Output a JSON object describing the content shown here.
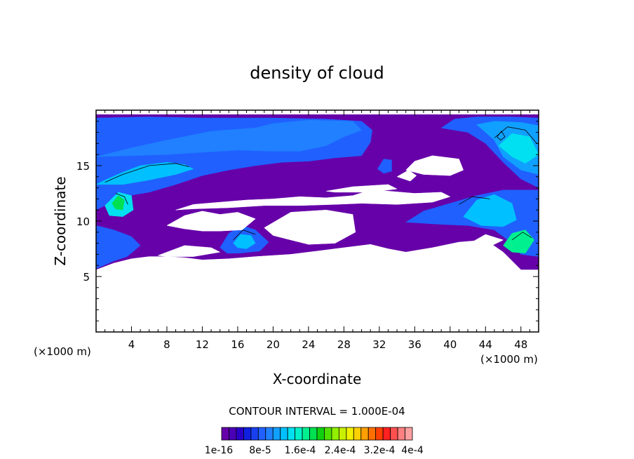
{
  "chart_data": {
    "type": "heatmap",
    "title": "density of cloud",
    "xlabel": "X-coordinate",
    "ylabel": "Z-coordinate",
    "x_unit_left": "(×1000 m)",
    "x_unit_right": "(×1000 m)",
    "xlim": [
      0,
      50
    ],
    "ylim": [
      0,
      20
    ],
    "xticks": [
      4,
      8,
      12,
      16,
      20,
      24,
      28,
      32,
      36,
      40,
      44,
      48
    ],
    "yticks": [
      5,
      10,
      15
    ],
    "grid": false,
    "contour_interval_text": "CONTOUR INTERVAL = 1.000E-04",
    "colorbar": {
      "labels": [
        "1e-16",
        "8e-5",
        "1.6e-4",
        "2.4e-4",
        "3.2e-4",
        "4e-4"
      ],
      "colors": [
        "#6600a8",
        "#4a00b4",
        "#2a00c8",
        "#1020e0",
        "#1840f0",
        "#2060ff",
        "#2080ff",
        "#10a0ff",
        "#00c0ff",
        "#00e0f0",
        "#00f0c8",
        "#00f090",
        "#00e050",
        "#10d010",
        "#50e000",
        "#90f000",
        "#c8f000",
        "#f0f000",
        "#ffd000",
        "#ffa000",
        "#ff7000",
        "#ff4000",
        "#ff2020",
        "#ff5050",
        "#ff8080",
        "#ffa0a0"
      ]
    },
    "regions": [
      {
        "level": 0,
        "points": [
          [
            0,
            5.6
          ],
          [
            2,
            6.2
          ],
          [
            4,
            6.6
          ],
          [
            6,
            6.8
          ],
          [
            8,
            6.8
          ],
          [
            10,
            6.7
          ],
          [
            12,
            6.5
          ],
          [
            15,
            6.6
          ],
          [
            18,
            6.8
          ],
          [
            22,
            7.0
          ],
          [
            25,
            7.3
          ],
          [
            28,
            7.6
          ],
          [
            31,
            7.9
          ],
          [
            33,
            7.5
          ],
          [
            35,
            7.2
          ],
          [
            38,
            7.6
          ],
          [
            41,
            8.1
          ],
          [
            44,
            8.3
          ],
          [
            46,
            7.2
          ],
          [
            48,
            5.6
          ],
          [
            50,
            5.6
          ],
          [
            50,
            19.6
          ],
          [
            0,
            19.6
          ]
        ]
      },
      {
        "level": 5,
        "points": [
          [
            0,
            11.0
          ],
          [
            3,
            12.2
          ],
          [
            6,
            12.6
          ],
          [
            9,
            13.3
          ],
          [
            12,
            14.1
          ],
          [
            15,
            14.6
          ],
          [
            18,
            15.0
          ],
          [
            21,
            15.3
          ],
          [
            24,
            15.4
          ],
          [
            27,
            15.7
          ],
          [
            30,
            15.9
          ],
          [
            31,
            17.1
          ],
          [
            31.2,
            18.2
          ],
          [
            30,
            19.0
          ],
          [
            26,
            19.2
          ],
          [
            20,
            19.3
          ],
          [
            12,
            19.3
          ],
          [
            6,
            19.4
          ],
          [
            0,
            19.3
          ]
        ]
      },
      {
        "level": 6,
        "points": [
          [
            0,
            15.8
          ],
          [
            4,
            16.6
          ],
          [
            8,
            17.3
          ],
          [
            13,
            18.1
          ],
          [
            18,
            18.4
          ],
          [
            20,
            18.8
          ],
          [
            24,
            19.1
          ],
          [
            29,
            19.0
          ],
          [
            30,
            18.2
          ],
          [
            28,
            17.6
          ],
          [
            26,
            16.8
          ],
          [
            23,
            16.3
          ],
          [
            20,
            16.3
          ],
          [
            16,
            16.4
          ],
          [
            12,
            16.2
          ],
          [
            8,
            16.0
          ],
          [
            4,
            15.9
          ]
        ]
      },
      {
        "level": 8,
        "points": [
          [
            0,
            13.3
          ],
          [
            1,
            13.7
          ],
          [
            3,
            14.4
          ],
          [
            5,
            15.0
          ],
          [
            8,
            15.3
          ],
          [
            10,
            15.1
          ],
          [
            11,
            14.7
          ],
          [
            9,
            14.2
          ],
          [
            6,
            13.7
          ],
          [
            3,
            13.3
          ]
        ]
      },
      {
        "level": 9,
        "points": [
          [
            1,
            11.4
          ],
          [
            2.5,
            12.6
          ],
          [
            4,
            12.3
          ],
          [
            4.2,
            11.0
          ],
          [
            3,
            10.4
          ],
          [
            1.5,
            10.5
          ]
        ]
      },
      {
        "level": 12,
        "points": [
          [
            1.8,
            11.6
          ],
          [
            2.5,
            12.3
          ],
          [
            3.2,
            11.9
          ],
          [
            3.0,
            11.0
          ],
          [
            2.2,
            11.1
          ]
        ]
      },
      {
        "level": 5,
        "points": [
          [
            39,
            18.4
          ],
          [
            40.5,
            19.2
          ],
          [
            43,
            19.4
          ],
          [
            47,
            19.4
          ],
          [
            50,
            19.3
          ],
          [
            50,
            13.0
          ],
          [
            48,
            13.8
          ],
          [
            46,
            15.3
          ],
          [
            44,
            17.0
          ],
          [
            42,
            18.0
          ]
        ]
      },
      {
        "level": 7,
        "points": [
          [
            43,
            18.7
          ],
          [
            45,
            19.0
          ],
          [
            48,
            18.9
          ],
          [
            50,
            18.6
          ],
          [
            50,
            14.2
          ],
          [
            48,
            14.6
          ],
          [
            46,
            15.8
          ],
          [
            45,
            17.3
          ]
        ]
      },
      {
        "level": 9,
        "points": [
          [
            45.5,
            16.8
          ],
          [
            47,
            17.9
          ],
          [
            49,
            17.6
          ],
          [
            50,
            16.0
          ],
          [
            48.5,
            15.2
          ],
          [
            47,
            15.8
          ]
        ]
      },
      {
        "level": 5,
        "points": [
          [
            0,
            5.7
          ],
          [
            2,
            6.4
          ],
          [
            3.5,
            6.8
          ],
          [
            5,
            7.8
          ],
          [
            4,
            8.6
          ],
          [
            2,
            9.2
          ],
          [
            0,
            9.6
          ]
        ]
      },
      {
        "level": 5,
        "points": [
          [
            35,
            9.9
          ],
          [
            37,
            10.9
          ],
          [
            40,
            11.6
          ],
          [
            43,
            12.3
          ],
          [
            46,
            12.8
          ],
          [
            50,
            12.8
          ],
          [
            50,
            6.8
          ],
          [
            48,
            7.0
          ],
          [
            47,
            8.0
          ],
          [
            45,
            9.2
          ],
          [
            42,
            9.6
          ],
          [
            39,
            9.7
          ]
        ]
      },
      {
        "level": 8,
        "points": [
          [
            41.5,
            10.4
          ],
          [
            43,
            11.9
          ],
          [
            45,
            12.4
          ],
          [
            47,
            11.6
          ],
          [
            47.5,
            10.1
          ],
          [
            46,
            9.5
          ],
          [
            43.5,
            9.6
          ]
        ]
      },
      {
        "level": 11,
        "points": [
          [
            46,
            7.8
          ],
          [
            47,
            8.9
          ],
          [
            48.5,
            9.2
          ],
          [
            49.5,
            8.3
          ],
          [
            48.5,
            7.1
          ],
          [
            47,
            7.2
          ]
        ]
      },
      {
        "level": 5,
        "points": [
          [
            14.0,
            7.6
          ],
          [
            15.0,
            8.9
          ],
          [
            16.5,
            9.6
          ],
          [
            18.0,
            9.2
          ],
          [
            19.5,
            8.1
          ],
          [
            18.5,
            7.3
          ],
          [
            16.2,
            7.1
          ],
          [
            14.8,
            7.1
          ]
        ]
      },
      {
        "level": 8,
        "points": [
          [
            15.5,
            8.0
          ],
          [
            16.3,
            8.8
          ],
          [
            17.5,
            8.7
          ],
          [
            18.0,
            8.0
          ],
          [
            17.0,
            7.5
          ],
          [
            16.0,
            7.6
          ]
        ]
      },
      {
        "level": 5,
        "points": [
          [
            31.8,
            14.7
          ],
          [
            32.5,
            15.6
          ],
          [
            33.4,
            15.5
          ],
          [
            33.4,
            14.5
          ],
          [
            32.5,
            14.3
          ]
        ]
      },
      {
        "level": -1,
        "points": [
          [
            8,
            9.6
          ],
          [
            10,
            10.5
          ],
          [
            12,
            10.9
          ],
          [
            14,
            10.6
          ],
          [
            16,
            10.8
          ],
          [
            18,
            10.2
          ],
          [
            16.5,
            9.2
          ],
          [
            14,
            9.1
          ],
          [
            12,
            9.1
          ],
          [
            10,
            9.3
          ]
        ]
      },
      {
        "level": -1,
        "points": [
          [
            9,
            11.0
          ],
          [
            11,
            11.5
          ],
          [
            14,
            11.7
          ],
          [
            17,
            11.9
          ],
          [
            20,
            12.0
          ],
          [
            23,
            12.2
          ],
          [
            26,
            12.1
          ],
          [
            29,
            12.3
          ],
          [
            31,
            12.8
          ],
          [
            33,
            12.7
          ],
          [
            36,
            12.5
          ],
          [
            39,
            12.6
          ],
          [
            40,
            12.2
          ],
          [
            38,
            11.7
          ],
          [
            34,
            11.5
          ],
          [
            30,
            11.6
          ],
          [
            27,
            11.5
          ],
          [
            23,
            11.4
          ],
          [
            19,
            11.4
          ],
          [
            15,
            11.2
          ],
          [
            11,
            11.1
          ]
        ]
      },
      {
        "level": -1,
        "points": [
          [
            19,
            9.4
          ],
          [
            22,
            10.8
          ],
          [
            26,
            11.0
          ],
          [
            29,
            10.6
          ],
          [
            29.3,
            9.0
          ],
          [
            27,
            8.0
          ],
          [
            24,
            7.9
          ],
          [
            22,
            8.3
          ],
          [
            20,
            8.7
          ]
        ]
      },
      {
        "level": -1,
        "points": [
          [
            7,
            6.9
          ],
          [
            10,
            7.8
          ],
          [
            13,
            7.6
          ],
          [
            14,
            7.2
          ],
          [
            11,
            6.8
          ],
          [
            8,
            6.8
          ]
        ]
      },
      {
        "level": -1,
        "points": [
          [
            36,
            15.4
          ],
          [
            38,
            15.9
          ],
          [
            41,
            15.6
          ],
          [
            41.5,
            14.6
          ],
          [
            40,
            14.1
          ],
          [
            37,
            14.2
          ],
          [
            35,
            14.6
          ]
        ]
      },
      {
        "level": -1,
        "points": [
          [
            34,
            14.0
          ],
          [
            35.3,
            14.6
          ],
          [
            36.2,
            14.1
          ],
          [
            35.5,
            13.6
          ]
        ]
      },
      {
        "level": -1,
        "points": [
          [
            26,
            12.7
          ],
          [
            29,
            13.1
          ],
          [
            33,
            13.3
          ],
          [
            34,
            12.9
          ],
          [
            31,
            12.6
          ],
          [
            27,
            12.6
          ]
        ]
      },
      {
        "level": -1,
        "points": [
          [
            42,
            7.9
          ],
          [
            44,
            8.8
          ],
          [
            46,
            8.3
          ],
          [
            44.5,
            7.7
          ]
        ]
      },
      {
        "level": -1,
        "points": [
          [
            0,
            0
          ],
          [
            50,
            0
          ],
          [
            50,
            5.6
          ],
          [
            48,
            5.6
          ],
          [
            46,
            7.2
          ],
          [
            44,
            8.3
          ],
          [
            41,
            8.1
          ],
          [
            38,
            7.6
          ],
          [
            35,
            7.2
          ],
          [
            33,
            7.5
          ],
          [
            31,
            7.9
          ],
          [
            28,
            7.6
          ],
          [
            25,
            7.3
          ],
          [
            22,
            7.0
          ],
          [
            18,
            6.8
          ],
          [
            15,
            6.6
          ],
          [
            12,
            6.5
          ],
          [
            10,
            6.7
          ],
          [
            8,
            6.8
          ],
          [
            6,
            6.8
          ],
          [
            4,
            6.6
          ],
          [
            2,
            6.2
          ],
          [
            0,
            5.6
          ]
        ]
      }
    ],
    "contours": [
      [
        [
          1,
          13.5
        ],
        [
          3,
          14.2
        ],
        [
          6,
          15.0
        ],
        [
          9,
          15.2
        ],
        [
          10.5,
          14.9
        ]
      ],
      [
        [
          2.2,
          12.5
        ],
        [
          3.2,
          12.2
        ],
        [
          3.6,
          11.5
        ]
      ],
      [
        [
          45,
          17.5
        ],
        [
          46.5,
          18.5
        ],
        [
          48.5,
          18.2
        ],
        [
          49.8,
          17.0
        ]
      ],
      [
        [
          45.3,
          17.6
        ],
        [
          45.8,
          18.1
        ],
        [
          46.2,
          17.6
        ],
        [
          45.7,
          17.3
        ],
        [
          45.3,
          17.6
        ]
      ],
      [
        [
          41,
          11.5
        ],
        [
          42.5,
          12.2
        ],
        [
          44.5,
          12.0
        ]
      ],
      [
        [
          15.5,
          8.3
        ],
        [
          16.6,
          9.2
        ],
        [
          18.0,
          8.8
        ]
      ],
      [
        [
          47,
          8.3
        ],
        [
          48.2,
          9.0
        ],
        [
          49.2,
          8.5
        ]
      ]
    ]
  }
}
